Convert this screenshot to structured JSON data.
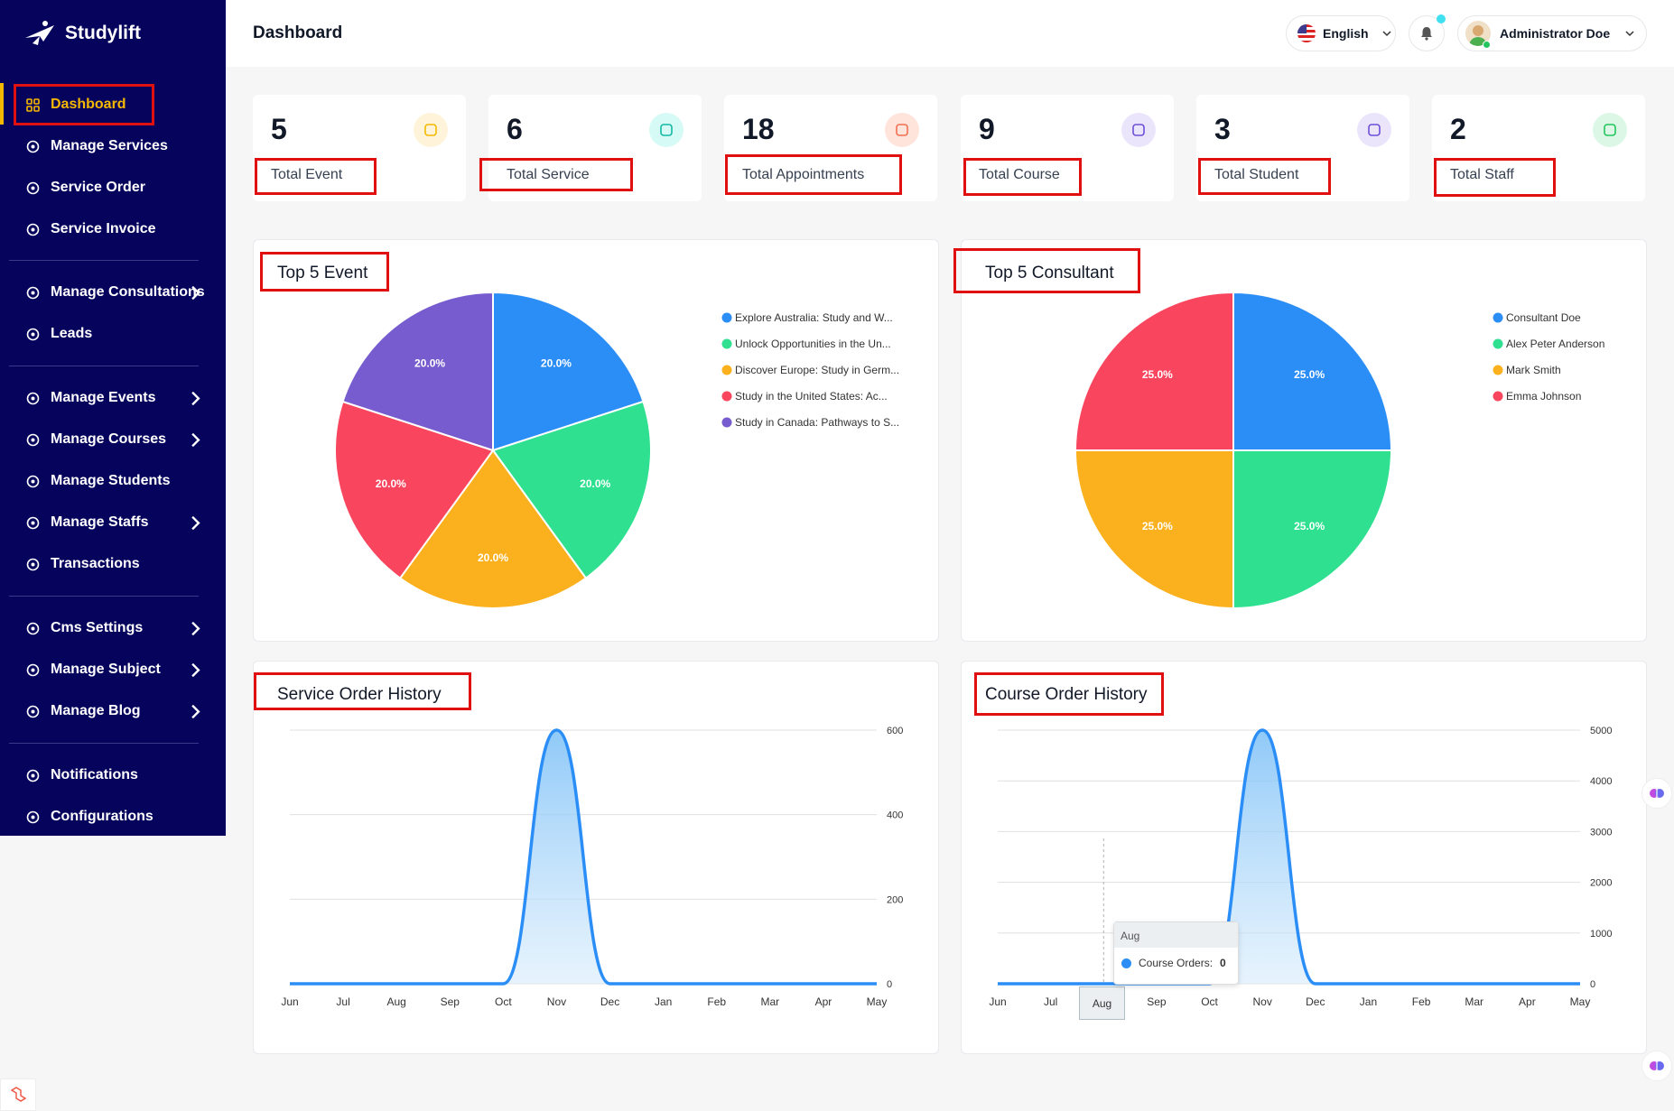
{
  "app": {
    "brand": "Studylift",
    "page_title": "Dashboard"
  },
  "sidebar": {
    "items": [
      {
        "label": "Dashboard",
        "icon": "dashboard-icon",
        "active": true
      },
      {
        "label": "Manage Services",
        "icon": "services-icon"
      },
      {
        "label": "Service Order",
        "icon": "order-icon"
      },
      {
        "label": "Service Invoice",
        "icon": "invoice-icon"
      },
      {
        "label": "Manage Consultations",
        "icon": "consultation-icon",
        "has_children": true
      },
      {
        "label": "Leads",
        "icon": "leads-icon"
      },
      {
        "label": "Manage Events",
        "icon": "calendar-icon",
        "has_children": true
      },
      {
        "label": "Manage Courses",
        "icon": "course-icon",
        "has_children": true
      },
      {
        "label": "Manage Students",
        "icon": "students-icon"
      },
      {
        "label": "Manage Staffs",
        "icon": "staff-icon",
        "has_children": true
      },
      {
        "label": "Transactions",
        "icon": "transactions-icon"
      },
      {
        "label": "Cms Settings",
        "icon": "cms-gear-icon",
        "has_children": true
      },
      {
        "label": "Manage Subject",
        "icon": "book-icon",
        "has_children": true
      },
      {
        "label": "Manage Blog",
        "icon": "blog-icon",
        "has_children": true
      },
      {
        "label": "Notifications",
        "icon": "bell-icon"
      },
      {
        "label": "Configurations",
        "icon": "config-gear-icon"
      }
    ]
  },
  "header": {
    "language": "English",
    "user_name": "Administrator Doe"
  },
  "stats": [
    {
      "value": "5",
      "label": "Total Event",
      "color": "#f5b800",
      "bg": "#fff4d9"
    },
    {
      "value": "6",
      "label": "Total Service",
      "color": "#14b8a6",
      "bg": "#d6faf5"
    },
    {
      "value": "18",
      "label": "Total Appointments",
      "color": "#f07050",
      "bg": "#ffe4dc"
    },
    {
      "value": "9",
      "label": "Total Course",
      "color": "#6d4ed8",
      "bg": "#ebe5fc"
    },
    {
      "value": "3",
      "label": "Total Student",
      "color": "#6d4ed8",
      "bg": "#ebe5fc"
    },
    {
      "value": "2",
      "label": "Total Staff",
      "color": "#22c55e",
      "bg": "#dcf7e6"
    }
  ],
  "panels": {
    "events_title": "Top 5 Event",
    "consultants_title": "Top 5 Consultant",
    "service_history_title": "Service Order History",
    "course_history_title": "Course Order History"
  },
  "chart_data": [
    {
      "type": "pie",
      "title": "Top 5 Event",
      "categories": [
        "Explore Australia: Study and W...",
        "Unlock Opportunities in the Un...",
        "Discover Europe: Study in Germ...",
        "Study in the United States: Ac...",
        "Study in Canada: Pathways to S..."
      ],
      "values": [
        20.0,
        20.0,
        20.0,
        20.0,
        20.0
      ],
      "value_labels": [
        "20.0%",
        "20.0%",
        "20.0%",
        "20.0%",
        "20.0%"
      ],
      "colors": [
        "#2b8ef7",
        "#2ee08f",
        "#fbb01e",
        "#f9465e",
        "#775ccf"
      ],
      "legend": "right"
    },
    {
      "type": "pie",
      "title": "Top 5 Consultant",
      "categories": [
        "Consultant Doe",
        "Alex Peter Anderson",
        "Mark Smith",
        "Emma Johnson"
      ],
      "values": [
        25.0,
        25.0,
        25.0,
        25.0
      ],
      "value_labels": [
        "25.0%",
        "25.0%",
        "25.0%",
        "25.0%"
      ],
      "colors": [
        "#2b8ef7",
        "#2ee08f",
        "#fbb01e",
        "#f9465e"
      ],
      "legend": "right"
    },
    {
      "type": "area",
      "title": "Service Order History",
      "categories": [
        "Jun",
        "Jul",
        "Aug",
        "Sep",
        "Oct",
        "Nov",
        "Dec",
        "Jan",
        "Feb",
        "Mar",
        "Apr",
        "May"
      ],
      "series": [
        {
          "values": [
            0,
            0,
            0,
            0,
            0,
            600,
            0,
            0,
            0,
            0,
            0,
            0
          ]
        }
      ],
      "yticks": [
        0,
        200,
        400,
        600
      ],
      "ylim": [
        0,
        600
      ],
      "y_axis_side": "right",
      "grid": true,
      "color": "#2b8ef7"
    },
    {
      "type": "area",
      "title": "Course Order History",
      "categories": [
        "Jun",
        "Jul",
        "Aug",
        "Sep",
        "Oct",
        "Nov",
        "Dec",
        "Jan",
        "Feb",
        "Mar",
        "Apr",
        "May"
      ],
      "series": [
        {
          "name": "Course Orders",
          "values": [
            0,
            0,
            0,
            0,
            0,
            5000,
            0,
            0,
            0,
            0,
            0,
            0
          ]
        }
      ],
      "yticks": [
        0,
        1000,
        2000,
        3000,
        4000,
        5000
      ],
      "ylim": [
        0,
        5000
      ],
      "y_axis_side": "right",
      "grid": true,
      "color": "#2b8ef7",
      "tooltip": {
        "category": "Aug",
        "series": "Course Orders:",
        "value": "0"
      }
    }
  ]
}
